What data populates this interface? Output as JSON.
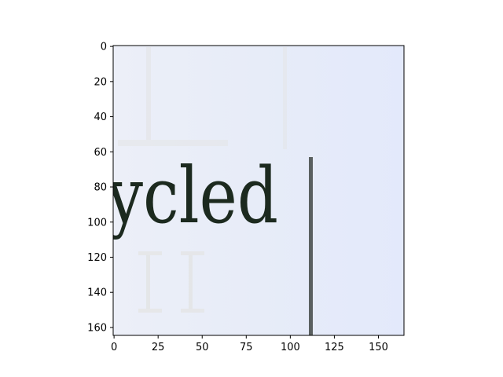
{
  "image": {
    "word_fragment": "ycled",
    "background_color": "#e6ecfa",
    "text_color": "#1c2a1f",
    "rule_color": "#5a6060"
  },
  "axes": {
    "x_ticks": [
      "0",
      "25",
      "50",
      "75",
      "100",
      "125",
      "150"
    ],
    "y_ticks": [
      "0",
      "20",
      "40",
      "60",
      "80",
      "100",
      "120",
      "140",
      "160"
    ]
  }
}
